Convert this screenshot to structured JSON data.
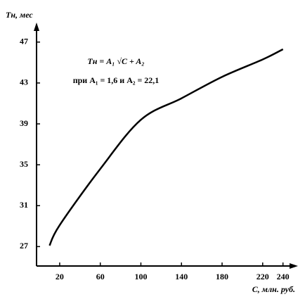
{
  "chart_data": {
    "type": "line",
    "y_label": "Tн, мес",
    "x_label": "C, млн. руб.",
    "annotations": [
      "Tн = A₁ √C + A₂",
      "при A₁ = 1,6 и A₂ = 22,1"
    ],
    "x": [
      10,
      20,
      60,
      100,
      140,
      180,
      220,
      240
    ],
    "series": [
      {
        "color": "#000000",
        "values": [
          27.1,
          29.1,
          34.6,
          39.4,
          41.5,
          43.6,
          45.3,
          46.3
        ]
      }
    ],
    "xlim": [
      -2.8,
      252
    ],
    "ylim": [
      25.1,
      48.5
    ],
    "xticks": [
      20,
      60,
      100,
      140,
      180,
      220,
      240
    ],
    "yticks": [
      27,
      31,
      35,
      39,
      43,
      47
    ],
    "grid": false
  }
}
